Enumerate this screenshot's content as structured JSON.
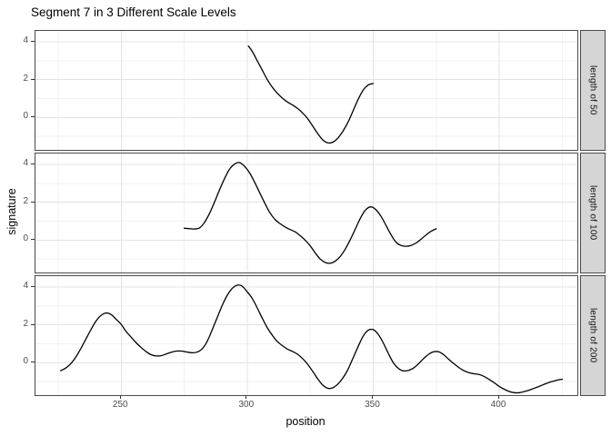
{
  "title": "Segment 7 in 3 Different Scale Levels",
  "colors": {
    "background": "#ffffff",
    "line": "#000000",
    "panel_border": "#4a4a4a",
    "grid_major": "#e3e3e3",
    "grid_minor": "#f1f1f1",
    "strip_background": "#d5d5d5",
    "tick_text": "#4d4d4d",
    "text": "#000000"
  },
  "chart_data": {
    "type": "line",
    "title": "Segment 7 in 3 Different Scale Levels",
    "xlabel": "position",
    "ylabel": "signature",
    "legend_position": "none",
    "grid": true,
    "x_domain": [
      216,
      431
    ],
    "y_domain": [
      -1.71,
      4.58
    ],
    "x_ticks": [
      250,
      300,
      350,
      400
    ],
    "x_minor_ticks": [
      225,
      275,
      325,
      375,
      425
    ],
    "y_ticks": [
      0,
      2,
      4
    ],
    "y_minor_ticks": [
      -1,
      1,
      3
    ],
    "facets": [
      {
        "label": "length of 50",
        "x_range": [
          300,
          350
        ],
        "points": [
          [
            300.5,
            3.78
          ],
          [
            302,
            3.5
          ],
          [
            304,
            3.0
          ],
          [
            306,
            2.5
          ],
          [
            308,
            2.0
          ],
          [
            310,
            1.6
          ],
          [
            312,
            1.28
          ],
          [
            314,
            1.02
          ],
          [
            316,
            0.82
          ],
          [
            318,
            0.66
          ],
          [
            320,
            0.48
          ],
          [
            322,
            0.24
          ],
          [
            324,
            -0.06
          ],
          [
            326,
            -0.45
          ],
          [
            328,
            -0.85
          ],
          [
            330,
            -1.18
          ],
          [
            332,
            -1.34
          ],
          [
            334,
            -1.3
          ],
          [
            336,
            -1.08
          ],
          [
            338,
            -0.72
          ],
          [
            340,
            -0.25
          ],
          [
            342,
            0.35
          ],
          [
            344,
            0.95
          ],
          [
            346,
            1.45
          ],
          [
            348,
            1.72
          ],
          [
            350,
            1.8
          ]
        ]
      },
      {
        "label": "length of 100",
        "x_range": [
          275,
          375
        ],
        "points": [
          [
            275,
            0.63
          ],
          [
            277,
            0.61
          ],
          [
            279,
            0.59
          ],
          [
            281,
            0.64
          ],
          [
            283,
            0.92
          ],
          [
            285,
            1.4
          ],
          [
            287,
            2.0
          ],
          [
            289,
            2.65
          ],
          [
            291,
            3.25
          ],
          [
            293,
            3.75
          ],
          [
            295,
            4.02
          ],
          [
            297,
            4.1
          ],
          [
            299,
            3.9
          ],
          [
            301,
            3.55
          ],
          [
            303,
            3.05
          ],
          [
            305,
            2.5
          ],
          [
            307,
            1.95
          ],
          [
            309,
            1.45
          ],
          [
            311,
            1.1
          ],
          [
            313,
            0.88
          ],
          [
            315,
            0.7
          ],
          [
            317,
            0.56
          ],
          [
            319,
            0.44
          ],
          [
            321,
            0.24
          ],
          [
            323,
            0.0
          ],
          [
            325,
            -0.3
          ],
          [
            327,
            -0.68
          ],
          [
            329,
            -1.0
          ],
          [
            331,
            -1.18
          ],
          [
            333,
            -1.22
          ],
          [
            335,
            -1.1
          ],
          [
            337,
            -0.85
          ],
          [
            339,
            -0.45
          ],
          [
            341,
            0.05
          ],
          [
            343,
            0.62
          ],
          [
            345,
            1.18
          ],
          [
            347,
            1.6
          ],
          [
            349,
            1.76
          ],
          [
            351,
            1.62
          ],
          [
            353,
            1.28
          ],
          [
            355,
            0.8
          ],
          [
            357,
            0.3
          ],
          [
            359,
            -0.1
          ],
          [
            361,
            -0.28
          ],
          [
            363,
            -0.32
          ],
          [
            365,
            -0.28
          ],
          [
            367,
            -0.15
          ],
          [
            369,
            0.05
          ],
          [
            371,
            0.28
          ],
          [
            373,
            0.47
          ],
          [
            375,
            0.6
          ]
        ]
      },
      {
        "label": "length of 200",
        "x_range": [
          225,
          425
        ],
        "points": [
          [
            226,
            -0.42
          ],
          [
            228,
            -0.28
          ],
          [
            230,
            -0.05
          ],
          [
            232,
            0.3
          ],
          [
            234,
            0.75
          ],
          [
            236,
            1.25
          ],
          [
            238,
            1.75
          ],
          [
            240,
            2.2
          ],
          [
            242,
            2.5
          ],
          [
            244,
            2.63
          ],
          [
            246,
            2.55
          ],
          [
            248,
            2.3
          ],
          [
            250,
            2.03
          ],
          [
            252,
            1.65
          ],
          [
            254,
            1.35
          ],
          [
            256,
            1.05
          ],
          [
            258,
            0.8
          ],
          [
            260,
            0.58
          ],
          [
            262,
            0.42
          ],
          [
            264,
            0.36
          ],
          [
            266,
            0.38
          ],
          [
            268,
            0.47
          ],
          [
            270,
            0.56
          ],
          [
            272,
            0.62
          ],
          [
            274,
            0.62
          ],
          [
            276,
            0.57
          ],
          [
            278,
            0.53
          ],
          [
            280,
            0.56
          ],
          [
            282,
            0.72
          ],
          [
            284,
            1.1
          ],
          [
            286,
            1.7
          ],
          [
            288,
            2.35
          ],
          [
            290,
            3.0
          ],
          [
            292,
            3.55
          ],
          [
            294,
            3.92
          ],
          [
            296,
            4.1
          ],
          [
            298,
            4.05
          ],
          [
            300,
            3.75
          ],
          [
            302,
            3.4
          ],
          [
            304,
            2.9
          ],
          [
            306,
            2.35
          ],
          [
            308,
            1.85
          ],
          [
            310,
            1.45
          ],
          [
            312,
            1.12
          ],
          [
            314,
            0.9
          ],
          [
            316,
            0.72
          ],
          [
            318,
            0.6
          ],
          [
            320,
            0.45
          ],
          [
            322,
            0.22
          ],
          [
            324,
            -0.08
          ],
          [
            326,
            -0.45
          ],
          [
            328,
            -0.85
          ],
          [
            330,
            -1.18
          ],
          [
            332,
            -1.35
          ],
          [
            334,
            -1.32
          ],
          [
            336,
            -1.12
          ],
          [
            338,
            -0.8
          ],
          [
            340,
            -0.35
          ],
          [
            342,
            0.25
          ],
          [
            344,
            0.85
          ],
          [
            346,
            1.4
          ],
          [
            348,
            1.72
          ],
          [
            350,
            1.75
          ],
          [
            352,
            1.5
          ],
          [
            354,
            1.05
          ],
          [
            356,
            0.5
          ],
          [
            358,
            0.0
          ],
          [
            360,
            -0.3
          ],
          [
            362,
            -0.43
          ],
          [
            364,
            -0.4
          ],
          [
            366,
            -0.28
          ],
          [
            368,
            -0.05
          ],
          [
            370,
            0.22
          ],
          [
            372,
            0.45
          ],
          [
            374,
            0.58
          ],
          [
            376,
            0.58
          ],
          [
            378,
            0.42
          ],
          [
            380,
            0.18
          ],
          [
            382,
            -0.05
          ],
          [
            384,
            -0.25
          ],
          [
            386,
            -0.42
          ],
          [
            388,
            -0.52
          ],
          [
            390,
            -0.58
          ],
          [
            392,
            -0.62
          ],
          [
            394,
            -0.72
          ],
          [
            396,
            -0.88
          ],
          [
            398,
            -1.05
          ],
          [
            400,
            -1.25
          ],
          [
            402,
            -1.4
          ],
          [
            404,
            -1.52
          ],
          [
            406,
            -1.58
          ],
          [
            408,
            -1.58
          ],
          [
            410,
            -1.52
          ],
          [
            412,
            -1.44
          ],
          [
            414,
            -1.34
          ],
          [
            416,
            -1.24
          ],
          [
            418,
            -1.13
          ],
          [
            420,
            -1.03
          ],
          [
            422,
            -0.95
          ],
          [
            424,
            -0.89
          ],
          [
            425,
            -0.87
          ]
        ]
      }
    ]
  }
}
